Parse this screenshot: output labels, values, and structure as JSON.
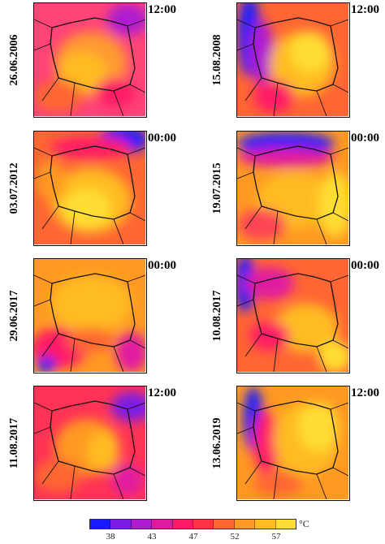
{
  "panels": [
    {
      "date": "26.06.2006",
      "time": "12:00"
    },
    {
      "date": "15.08.2008",
      "time": "12:00"
    },
    {
      "date": "03.07.2012",
      "time": "00:00"
    },
    {
      "date": "19.07.2015",
      "time": "00:00"
    },
    {
      "date": "29.06.2017",
      "time": "00:00"
    },
    {
      "date": "10.08.2017",
      "time": "00:00"
    },
    {
      "date": "11.08.2017",
      "time": "12:00"
    },
    {
      "date": "13.06.2019",
      "time": "12:00"
    }
  ],
  "colorbar": {
    "unit": "°C",
    "tick_labels": [
      "38",
      "43",
      "47",
      "52",
      "57"
    ],
    "colors": [
      "#1a1aff",
      "#7a1ae6",
      "#b01ad0",
      "#e01aa0",
      "#ff1a66",
      "#ff3344",
      "#ff6633",
      "#ff9922",
      "#ffbb22",
      "#ffdd33"
    ]
  }
}
